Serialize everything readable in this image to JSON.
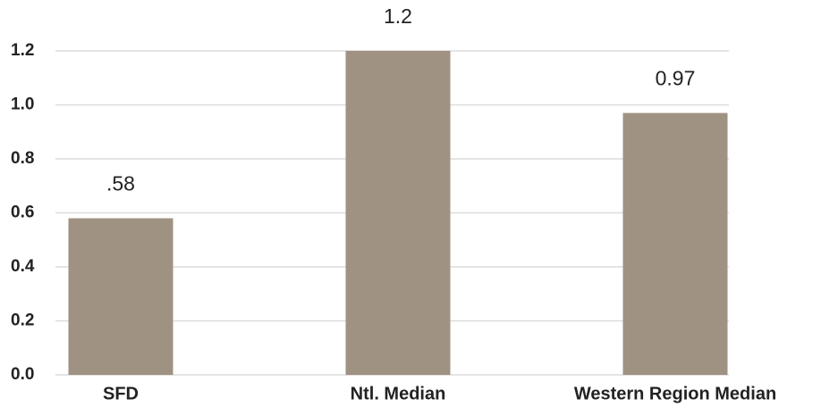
{
  "chart_data": {
    "type": "bar",
    "categories": [
      "SFD",
      "Ntl. Median",
      "Western Region Median"
    ],
    "values": [
      0.58,
      1.2,
      0.97
    ],
    "value_labels": [
      ".58",
      "1.2",
      "0.97"
    ],
    "color": "#a09282",
    "ylim": [
      0,
      1.2
    ],
    "yticks": [
      {
        "value": 0,
        "label": "0.0"
      },
      0.2,
      0.4,
      0.6,
      0.8,
      {
        "value": 1,
        "label": "1.0"
      },
      1.2
    ],
    "grid": true
  }
}
